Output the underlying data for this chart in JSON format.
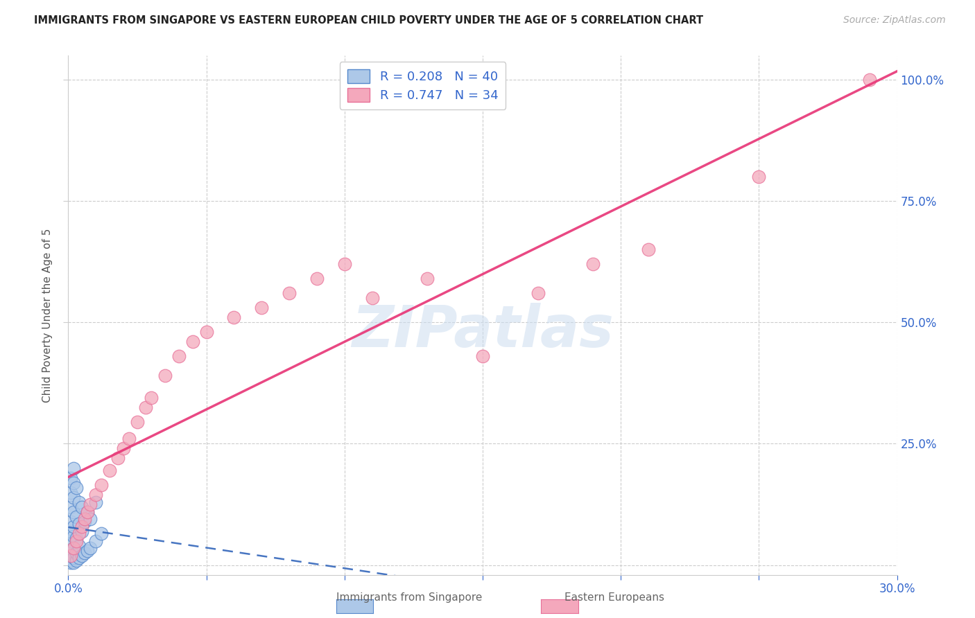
{
  "title": "IMMIGRANTS FROM SINGAPORE VS EASTERN EUROPEAN CHILD POVERTY UNDER THE AGE OF 5 CORRELATION CHART",
  "source": "Source: ZipAtlas.com",
  "ylabel": "Child Poverty Under the Age of 5",
  "xlim": [
    0.0,
    0.3
  ],
  "ylim": [
    -0.02,
    1.05
  ],
  "xtick_pos": [
    0.0,
    0.05,
    0.1,
    0.15,
    0.2,
    0.25,
    0.3
  ],
  "xticklabels": [
    "0.0%",
    "",
    "",
    "",
    "",
    "",
    "30.0%"
  ],
  "ytick_positions": [
    0.0,
    0.25,
    0.5,
    0.75,
    1.0
  ],
  "ytick_labels_right": [
    "",
    "25.0%",
    "50.0%",
    "75.0%",
    "100.0%"
  ],
  "watermark": "ZIPatlas",
  "blue_R": 0.208,
  "blue_N": 40,
  "pink_R": 0.747,
  "pink_N": 34,
  "blue_color": "#adc8e8",
  "blue_edge_color": "#5588cc",
  "blue_line_color": "#3366bb",
  "pink_color": "#f4a8bc",
  "pink_edge_color": "#e87098",
  "pink_line_color": "#e83878",
  "label_color": "#3366cc",
  "title_color": "#222222",
  "source_color": "#aaaaaa",
  "grid_color": "#cccccc",
  "blue_scatter_x": [
    0.001,
    0.001,
    0.001,
    0.001,
    0.001,
    0.001,
    0.001,
    0.001,
    0.001,
    0.001,
    0.002,
    0.002,
    0.002,
    0.002,
    0.002,
    0.002,
    0.002,
    0.002,
    0.002,
    0.003,
    0.003,
    0.003,
    0.003,
    0.003,
    0.004,
    0.004,
    0.004,
    0.004,
    0.005,
    0.005,
    0.005,
    0.006,
    0.006,
    0.007,
    0.007,
    0.008,
    0.008,
    0.01,
    0.01,
    0.012
  ],
  "blue_scatter_y": [
    0.005,
    0.01,
    0.02,
    0.03,
    0.05,
    0.07,
    0.09,
    0.12,
    0.15,
    0.18,
    0.005,
    0.015,
    0.035,
    0.06,
    0.08,
    0.11,
    0.14,
    0.17,
    0.2,
    0.01,
    0.025,
    0.055,
    0.1,
    0.16,
    0.015,
    0.04,
    0.085,
    0.13,
    0.02,
    0.07,
    0.12,
    0.025,
    0.09,
    0.03,
    0.11,
    0.035,
    0.095,
    0.05,
    0.13,
    0.065
  ],
  "pink_scatter_x": [
    0.001,
    0.002,
    0.003,
    0.004,
    0.005,
    0.006,
    0.007,
    0.008,
    0.01,
    0.012,
    0.015,
    0.018,
    0.02,
    0.022,
    0.025,
    0.028,
    0.03,
    0.035,
    0.04,
    0.045,
    0.05,
    0.06,
    0.07,
    0.08,
    0.09,
    0.1,
    0.11,
    0.13,
    0.15,
    0.17,
    0.19,
    0.21,
    0.25,
    0.29
  ],
  "pink_scatter_y": [
    0.02,
    0.035,
    0.05,
    0.065,
    0.08,
    0.095,
    0.11,
    0.125,
    0.145,
    0.165,
    0.195,
    0.22,
    0.24,
    0.26,
    0.295,
    0.325,
    0.345,
    0.39,
    0.43,
    0.46,
    0.48,
    0.51,
    0.53,
    0.56,
    0.59,
    0.62,
    0.55,
    0.59,
    0.43,
    0.56,
    0.62,
    0.65,
    0.8,
    1.0
  ]
}
